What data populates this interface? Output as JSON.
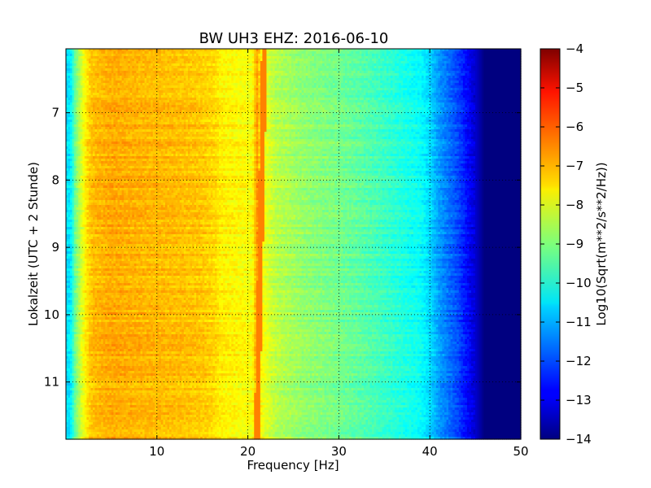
{
  "chart_data": {
    "type": "heatmap",
    "title": "BW UH3 EHZ: 2016-06-10",
    "xlabel": "Frequency [Hz]",
    "ylabel": "Lokalzeit (UTC + 2 Stunde)",
    "xlim": [
      0,
      50
    ],
    "ylim": [
      11.85,
      6.05
    ],
    "y_inverted": true,
    "x_ticks": [
      10,
      20,
      30,
      40,
      50
    ],
    "y_ticks": [
      7,
      8,
      9,
      10,
      11
    ],
    "grid": true,
    "colormap": "jet",
    "colorbar": {
      "label": "Log10(Sqrt(m**2/s**2/Hz))",
      "range": [
        -14,
        -4
      ],
      "ticks": [
        -14,
        -13,
        -12,
        -11,
        -10,
        -9,
        -8,
        -7,
        -6,
        -5,
        -4
      ]
    },
    "spectrum_profile": {
      "frequency_hz": [
        0.5,
        1,
        1.5,
        2,
        2.5,
        3,
        5,
        8,
        12,
        15,
        16.5,
        17,
        19,
        20.5,
        21,
        21.5,
        22,
        23,
        26,
        30,
        33,
        36,
        39,
        40,
        41,
        43,
        44,
        45,
        46,
        48,
        50
      ],
      "log10_amplitude": [
        -10.5,
        -9.2,
        -8.4,
        -7.8,
        -7.3,
        -7.1,
        -6.9,
        -7.0,
        -7.1,
        -7.2,
        -7.4,
        -7.6,
        -7.7,
        -7.8,
        -6.7,
        -7.8,
        -8.0,
        -8.4,
        -8.8,
        -9.1,
        -9.4,
        -9.8,
        -10.2,
        -10.6,
        -11.2,
        -12.0,
        -12.6,
        -13.2,
        -14.0,
        -14.0,
        -14.0
      ]
    },
    "persistent_line": {
      "name": "",
      "frequency_hz_at_start": 21.8,
      "frequency_hz_at_end": 21.0,
      "log10_amplitude": -6.5
    }
  }
}
